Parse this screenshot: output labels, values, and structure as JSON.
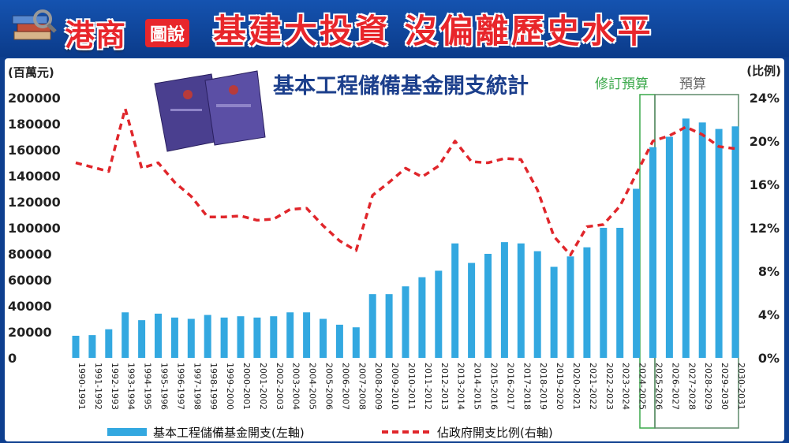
{
  "header": {
    "brand": "港商",
    "brand_sub": "圖說",
    "headline": "基建大投資 沒偏離歷史水平"
  },
  "chart_data": {
    "type": "bar",
    "title": "基本工程儲備基金開支統計",
    "y_left_label": "(百萬元)",
    "y_right_label": "(比例)",
    "ylim_left": [
      0,
      200000
    ],
    "ylim_right": [
      0,
      24
    ],
    "y_left_ticks": [
      "0",
      "20000",
      "40000",
      "60000",
      "80000",
      "100000",
      "120000",
      "140000",
      "160000",
      "180000",
      "200000"
    ],
    "y_right_ticks": [
      "0%",
      "4%",
      "8%",
      "12%",
      "16%",
      "20%",
      "24%"
    ],
    "categories": [
      "1990-1991",
      "1991-1992",
      "1992-1993",
      "1993-1994",
      "1994-1995",
      "1995-1996",
      "1996-1997",
      "1997-1998",
      "1998-1999",
      "1999-2000",
      "2000-2001",
      "2001-2002",
      "2002-2003",
      "2003-2004",
      "2004-2005",
      "2005-2006",
      "2006-2007",
      "2007-2008",
      "2008-2009",
      "2009-2010",
      "2010-2011",
      "2011-2012",
      "2012-2013",
      "2013-2014",
      "2014-2015",
      "2015-2016",
      "2016-2017",
      "2017-2018",
      "2018-2019",
      "2019-2020",
      "2020-2021",
      "2021-2022",
      "2022-2023",
      "2023-2024",
      "2024-2025",
      "2025-2026",
      "2026-2027",
      "2027-2028",
      "2028-2029",
      "2029-2030",
      "2030-2031"
    ],
    "series": [
      {
        "name": "基本工程儲備基金開支(左軸)",
        "type": "bar",
        "axis": "left",
        "color": "#33a8e0",
        "values": [
          17000,
          17500,
          22000,
          35000,
          29000,
          34000,
          31000,
          30000,
          33000,
          31000,
          32000,
          31000,
          32000,
          35000,
          35000,
          30000,
          25500,
          23500,
          49000,
          49000,
          55000,
          62000,
          67000,
          88000,
          73000,
          80000,
          89000,
          88000,
          82000,
          70000,
          78000,
          85000,
          100000,
          100000,
          130000,
          162000,
          170000,
          184000,
          181000,
          176000,
          178000
        ]
      },
      {
        "name": "佔政府開支比例(右軸)",
        "type": "line",
        "axis": "right",
        "color": "#e0262b",
        "values": [
          18.0,
          17.6,
          17.2,
          23.0,
          17.5,
          18.0,
          16.2,
          14.9,
          13.0,
          13.0,
          13.1,
          12.7,
          12.8,
          13.7,
          13.8,
          12.2,
          10.8,
          9.9,
          15.0,
          16.2,
          17.5,
          16.7,
          17.7,
          20.0,
          18.1,
          18.0,
          18.4,
          18.3,
          15.5,
          11.2,
          9.5,
          12.1,
          12.3,
          14.0,
          17.0,
          20.0,
          20.5,
          21.3,
          20.6,
          19.5,
          19.3
        ]
      }
    ],
    "annotations": {
      "revised_label": "修訂預算",
      "revised_color": "#3aa84a",
      "budget_label": "預算",
      "budget_color": "#666666"
    }
  }
}
